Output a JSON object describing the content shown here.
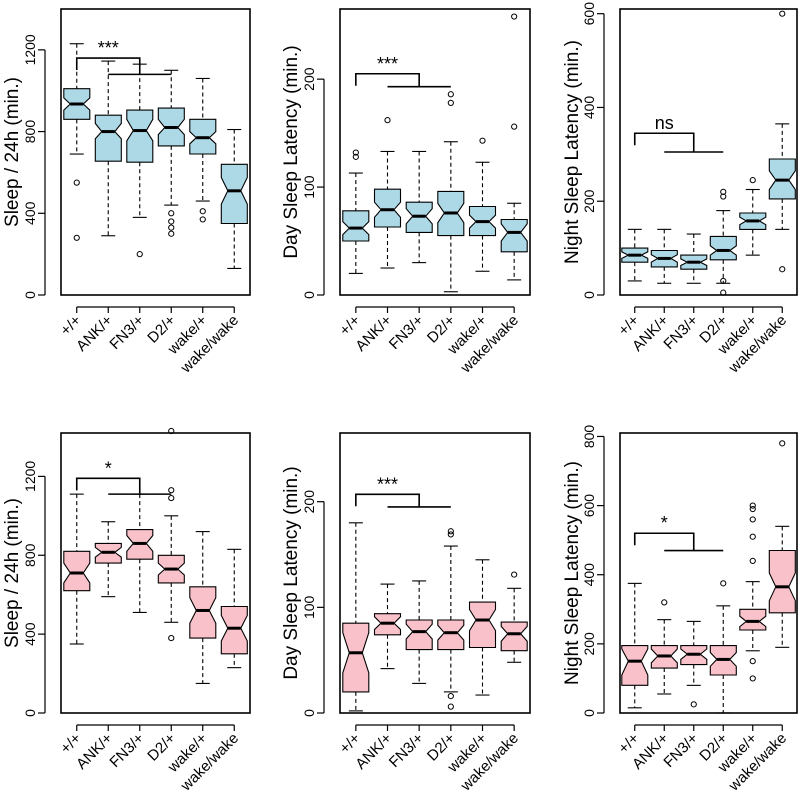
{
  "colors": {
    "blue_fill": "#add8e6",
    "pink_fill": "#f9c1c9",
    "gray_label": "#7a7a7a",
    "black": "#000000"
  },
  "chart_data": [
    {
      "type": "box",
      "ylabel": "Sleep / 24h (min.)",
      "ylim": [
        0,
        1400
      ],
      "yticks": [
        0,
        400,
        800,
        1200
      ],
      "categories": [
        "+/+",
        "ANK/+",
        "FN3/+",
        "D2/+",
        "wake/+",
        "wake/wake"
      ],
      "category_colors": [
        "black",
        "black",
        "black",
        "black",
        "gray",
        "gray"
      ],
      "fill": "blue_fill",
      "boxes": [
        {
          "whislo": 690,
          "q1": 860,
          "med": 935,
          "q3": 1010,
          "whishi": 1230,
          "notch_lo": 905,
          "notch_hi": 965,
          "fliers": [
            550,
            280
          ]
        },
        {
          "whislo": 290,
          "q1": 655,
          "med": 800,
          "q3": 880,
          "whishi": 1145,
          "notch_lo": 765,
          "notch_hi": 840,
          "fliers": []
        },
        {
          "whislo": 380,
          "q1": 650,
          "med": 805,
          "q3": 905,
          "whishi": 1130,
          "notch_lo": 755,
          "notch_hi": 860,
          "fliers": [
            200
          ]
        },
        {
          "whislo": 440,
          "q1": 730,
          "med": 820,
          "q3": 915,
          "whishi": 1100,
          "notch_lo": 785,
          "notch_hi": 860,
          "fliers": [
            400,
            360,
            330,
            300
          ]
        },
        {
          "whislo": 460,
          "q1": 690,
          "med": 770,
          "q3": 860,
          "whishi": 1060,
          "notch_lo": 740,
          "notch_hi": 800,
          "fliers": [
            410,
            370
          ]
        },
        {
          "whislo": 130,
          "q1": 350,
          "med": 510,
          "q3": 640,
          "whishi": 810,
          "notch_lo": 445,
          "notch_hi": 575,
          "fliers": []
        }
      ],
      "brackets": [
        {
          "label": "***",
          "from": 0,
          "to": [
            1,
            3
          ],
          "y": 1160,
          "bar_y": 1080
        }
      ]
    },
    {
      "type": "box",
      "ylabel": "Day Sleep Latency (min.)",
      "ylim": [
        0,
        265
      ],
      "yticks": [
        0,
        100,
        200
      ],
      "categories": [
        "+/+",
        "ANK/+",
        "FN3/+",
        "D2/+",
        "wake/+",
        "wake/wake"
      ],
      "category_colors": [
        "black",
        "black",
        "black",
        "black",
        "gray",
        "gray"
      ],
      "fill": "blue_fill",
      "boxes": [
        {
          "whislo": 20,
          "q1": 50,
          "med": 62,
          "q3": 78,
          "whishi": 113,
          "notch_lo": 56,
          "notch_hi": 68,
          "fliers": [
            128,
            132
          ]
        },
        {
          "whislo": 25,
          "q1": 63,
          "med": 79,
          "q3": 98,
          "whishi": 133,
          "notch_lo": 72,
          "notch_hi": 86,
          "fliers": [
            162
          ]
        },
        {
          "whislo": 30,
          "q1": 58,
          "med": 73,
          "q3": 86,
          "whishi": 133,
          "notch_lo": 66,
          "notch_hi": 80,
          "fliers": []
        },
        {
          "whislo": 3,
          "q1": 55,
          "med": 76,
          "q3": 96,
          "whishi": 142,
          "notch_lo": 67,
          "notch_hi": 85,
          "fliers": [
            178,
            186
          ]
        },
        {
          "whislo": 22,
          "q1": 55,
          "med": 68,
          "q3": 82,
          "whishi": 123,
          "notch_lo": 62,
          "notch_hi": 74,
          "fliers": [
            143
          ]
        },
        {
          "whislo": 14,
          "q1": 40,
          "med": 58,
          "q3": 70,
          "whishi": 85,
          "notch_lo": 50,
          "notch_hi": 66,
          "fliers": [
            156,
            258
          ]
        }
      ],
      "brackets": [
        {
          "label": "***",
          "from": 0,
          "to": [
            1,
            3
          ],
          "y": 205,
          "bar_y": 193
        }
      ]
    },
    {
      "type": "box",
      "ylabel": "Night Sleep Latency (min.)",
      "ylim": [
        0,
        610
      ],
      "yticks": [
        0,
        200,
        400,
        600
      ],
      "categories": [
        "+/+",
        "ANK/+",
        "FN3/+",
        "D2/+",
        "wake/+",
        "wake/wake"
      ],
      "category_colors": [
        "black",
        "black",
        "black",
        "black",
        "gray",
        "gray"
      ],
      "fill": "blue_fill",
      "boxes": [
        {
          "whislo": 30,
          "q1": 70,
          "med": 85,
          "q3": 100,
          "whishi": 140,
          "notch_lo": 78,
          "notch_hi": 92,
          "fliers": []
        },
        {
          "whislo": 25,
          "q1": 60,
          "med": 78,
          "q3": 95,
          "whishi": 140,
          "notch_lo": 70,
          "notch_hi": 86,
          "fliers": []
        },
        {
          "whislo": 25,
          "q1": 55,
          "med": 70,
          "q3": 85,
          "whishi": 130,
          "notch_lo": 63,
          "notch_hi": 77,
          "fliers": []
        },
        {
          "whislo": 25,
          "q1": 75,
          "med": 95,
          "q3": 125,
          "whishi": 180,
          "notch_lo": 85,
          "notch_hi": 105,
          "fliers": [
            220,
            210,
            30,
            5
          ]
        },
        {
          "whislo": 85,
          "q1": 140,
          "med": 158,
          "q3": 175,
          "whishi": 225,
          "notch_lo": 150,
          "notch_hi": 166,
          "fliers": [
            245
          ]
        },
        {
          "whislo": 140,
          "q1": 205,
          "med": 245,
          "q3": 290,
          "whishi": 365,
          "notch_lo": 225,
          "notch_hi": 265,
          "fliers": [
            55,
            600
          ]
        }
      ],
      "brackets": [
        {
          "label": "ns",
          "from": 0,
          "to": [
            1,
            3
          ],
          "y": 345,
          "bar_y": 305
        }
      ]
    },
    {
      "type": "box",
      "ylabel": "Sleep / 24h (min.)",
      "ylim": [
        0,
        1420
      ],
      "yticks": [
        0,
        400,
        800,
        1200
      ],
      "categories": [
        "+/+",
        "ANK/+",
        "FN3/+",
        "D2/+",
        "wake/+",
        "wake/wake"
      ],
      "category_colors": [
        "black",
        "black",
        "black",
        "black",
        "gray",
        "gray"
      ],
      "fill": "pink_fill",
      "boxes": [
        {
          "whislo": 350,
          "q1": 620,
          "med": 710,
          "q3": 820,
          "whishi": 1110,
          "notch_lo": 660,
          "notch_hi": 760,
          "fliers": []
        },
        {
          "whislo": 590,
          "q1": 760,
          "med": 815,
          "q3": 860,
          "whishi": 970,
          "notch_lo": 790,
          "notch_hi": 840,
          "fliers": []
        },
        {
          "whislo": 510,
          "q1": 780,
          "med": 860,
          "q3": 930,
          "whishi": 1110,
          "notch_lo": 820,
          "notch_hi": 900,
          "fliers": []
        },
        {
          "whislo": 460,
          "q1": 660,
          "med": 730,
          "q3": 800,
          "whishi": 1000,
          "notch_lo": 700,
          "notch_hi": 760,
          "fliers": [
            1130,
            1090,
            1430,
            380
          ]
        },
        {
          "whislo": 150,
          "q1": 380,
          "med": 520,
          "q3": 640,
          "whishi": 920,
          "notch_lo": 455,
          "notch_hi": 585,
          "fliers": []
        },
        {
          "whislo": 230,
          "q1": 300,
          "med": 430,
          "q3": 540,
          "whishi": 830,
          "notch_lo": 365,
          "notch_hi": 495,
          "fliers": []
        }
      ],
      "brackets": [
        {
          "label": "*",
          "from": 0,
          "to": [
            1,
            3
          ],
          "y": 1190,
          "bar_y": 1110
        }
      ]
    },
    {
      "type": "box",
      "ylabel": "Day Sleep Latency (min.)",
      "ylim": [
        0,
        265
      ],
      "yticks": [
        0,
        100,
        200
      ],
      "categories": [
        "+/+",
        "ANK/+",
        "FN3/+",
        "D2/+",
        "wake/+",
        "wake/wake"
      ],
      "category_colors": [
        "black",
        "black",
        "black",
        "black",
        "gray",
        "gray"
      ],
      "fill": "pink_fill",
      "boxes": [
        {
          "whislo": 2,
          "q1": 20,
          "med": 57,
          "q3": 85,
          "whishi": 180,
          "notch_lo": 38,
          "notch_hi": 76,
          "fliers": []
        },
        {
          "whislo": 42,
          "q1": 74,
          "med": 85,
          "q3": 94,
          "whishi": 122,
          "notch_lo": 79,
          "notch_hi": 91,
          "fliers": []
        },
        {
          "whislo": 28,
          "q1": 60,
          "med": 77,
          "q3": 88,
          "whishi": 125,
          "notch_lo": 70,
          "notch_hi": 84,
          "fliers": []
        },
        {
          "whislo": 20,
          "q1": 60,
          "med": 76,
          "q3": 88,
          "whishi": 158,
          "notch_lo": 69,
          "notch_hi": 83,
          "fliers": [
            172,
            169,
            16,
            6
          ]
        },
        {
          "whislo": 17,
          "q1": 62,
          "med": 88,
          "q3": 105,
          "whishi": 145,
          "notch_lo": 78,
          "notch_hi": 98,
          "fliers": []
        },
        {
          "whislo": 48,
          "q1": 59,
          "med": 75,
          "q3": 86,
          "whishi": 118,
          "notch_lo": 68,
          "notch_hi": 82,
          "fliers": [
            131
          ]
        }
      ],
      "brackets": [
        {
          "label": "***",
          "from": 0,
          "to": [
            1,
            3
          ],
          "y": 207,
          "bar_y": 195
        }
      ]
    },
    {
      "type": "box",
      "ylabel": "Night Sleep Latency (min.)",
      "ylim": [
        0,
        810
      ],
      "yticks": [
        0,
        200,
        400,
        600,
        800
      ],
      "categories": [
        "+/+",
        "ANK/+",
        "FN3/+",
        "D2/+",
        "wake/+",
        "wake/wake"
      ],
      "category_colors": [
        "black",
        "black",
        "black",
        "black",
        "gray",
        "gray"
      ],
      "fill": "pink_fill",
      "boxes": [
        {
          "whislo": 15,
          "q1": 80,
          "med": 150,
          "q3": 195,
          "whishi": 375,
          "notch_lo": 110,
          "notch_hi": 185,
          "fliers": []
        },
        {
          "whislo": 55,
          "q1": 130,
          "med": 165,
          "q3": 195,
          "whishi": 270,
          "notch_lo": 145,
          "notch_hi": 185,
          "fliers": [
            320
          ]
        },
        {
          "whislo": 80,
          "q1": 140,
          "med": 170,
          "q3": 195,
          "whishi": 265,
          "notch_lo": 155,
          "notch_hi": 185,
          "fliers": [
            25
          ]
        },
        {
          "whislo": 0,
          "q1": 110,
          "med": 155,
          "q3": 195,
          "whishi": 310,
          "notch_lo": 135,
          "notch_hi": 175,
          "fliers": [
            375
          ]
        },
        {
          "whislo": 180,
          "q1": 240,
          "med": 265,
          "q3": 300,
          "whishi": 380,
          "notch_lo": 250,
          "notch_hi": 280,
          "fliers": [
            600,
            590,
            560,
            510,
            440,
            150,
            100
          ]
        },
        {
          "whislo": 190,
          "q1": 290,
          "med": 365,
          "q3": 470,
          "whishi": 540,
          "notch_lo": 325,
          "notch_hi": 405,
          "fliers": [
            780
          ]
        }
      ],
      "brackets": [
        {
          "label": "*",
          "from": 0,
          "to": [
            1,
            3
          ],
          "y": 520,
          "bar_y": 470
        }
      ]
    }
  ]
}
